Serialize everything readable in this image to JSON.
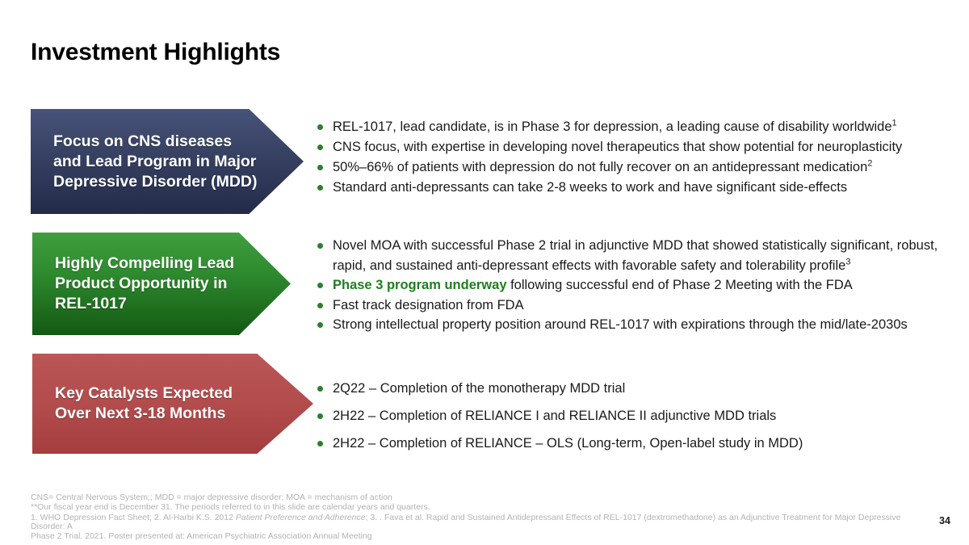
{
  "title": "Investment Highlights",
  "page_number": "34",
  "colors": {
    "banner_navy_top": "#48537a",
    "banner_navy_bottom": "#232b49",
    "banner_green_top": "#3f9e3e",
    "banner_green_bottom": "#135913",
    "banner_red_top": "#ba5656",
    "banner_red_bottom": "#a43f3f",
    "bullet_dot": "#2e7d32",
    "highlight_green": "#1f7d1f",
    "footnote_gray": "#b3b3b3"
  },
  "sections": [
    {
      "banner": "Focus on CNS diseases and Lead Program in Major Depressive Disorder (MDD)",
      "bullets": [
        {
          "text": "REL-1017, lead candidate, is in Phase 3 for depression, a leading cause of disability worldwide",
          "sup": "1"
        },
        {
          "text": "CNS focus, with expertise in developing novel therapeutics that show potential for neuroplasticity"
        },
        {
          "text": "50%–66% of patients with depression do not fully recover on an antidepressant medication",
          "sup": "2"
        },
        {
          "text": "Standard anti-depressants can take 2-8 weeks to work and have significant side-effects"
        }
      ]
    },
    {
      "banner": "Highly Compelling Lead Product Opportunity in REL-1017",
      "bullets": [
        {
          "text": "Novel MOA with successful Phase 2 trial in adjunctive MDD that showed statistically significant, robust, rapid, and sustained anti-depressant effects with favorable safety and tolerability profile",
          "sup": "3"
        },
        {
          "lead": "Phase 3 program underway",
          "text": " following successful end of Phase 2 Meeting with the FDA"
        },
        {
          "text": "Fast track designation from FDA"
        },
        {
          "text": "Strong intellectual property position around REL-1017 with expirations through the mid/late-2030s"
        }
      ]
    },
    {
      "banner": "Key Catalysts Expected Over Next 3-18 Months",
      "bullets": [
        {
          "text": "2Q22 – Completion of the monotherapy MDD trial"
        },
        {
          "text": "2H22 – Completion of RELIANCE I and RELIANCE II adjunctive MDD trials"
        },
        {
          "text": "2H22 – Completion of RELIANCE – OLS (Long-term, Open-label study in MDD)"
        }
      ]
    }
  ],
  "footnotes": {
    "line1": "CNS= Central Nervous System;; MDD = major depressive disorder; MOA = mechanism of action",
    "line2": "**Our fiscal year end is December 31. The periods referred to in this slide are calendar years and quarters.",
    "line3_pre": "1. WHO Depression Fact Sheet; 2. Al-Harbi K.S. 2012 ",
    "line3_italic": "Patient Preference and Adherence",
    "line3_post": "; 3. . Fava et al. Rapid and Sustained Antidepressant Effects of REL-1017 (dextromethadone) as an Adjunctive Treatment for Major Depressive Disorder: A",
    "line4": "Phase 2 Trial. 2021. Poster presented at: American Psychiatric Association Annual Meeting"
  }
}
